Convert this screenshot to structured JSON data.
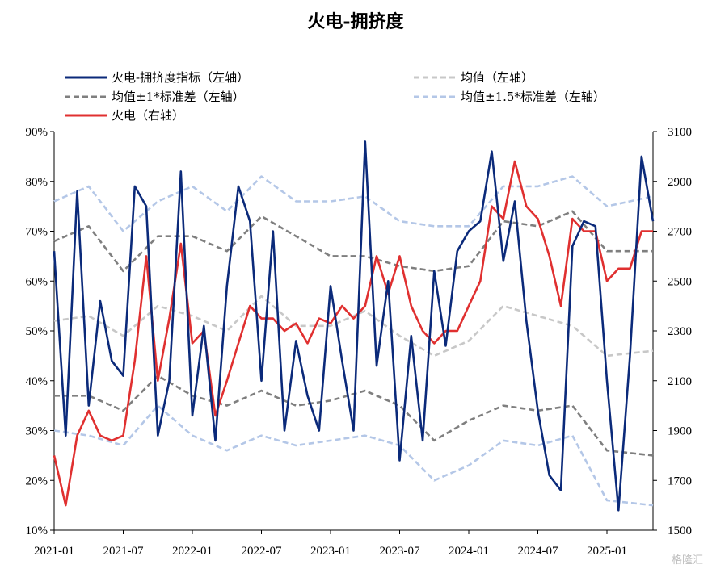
{
  "chart_data": {
    "type": "line",
    "title": "火电-拥挤度",
    "x_ticks": [
      "2021-01",
      "2021-07",
      "2022-01",
      "2022-07",
      "2023-01",
      "2023-07",
      "2024-01",
      "2024-07",
      "2025-01"
    ],
    "x_range": [
      "2021-01",
      "2025-05"
    ],
    "y_left": {
      "ticks": [
        "10%",
        "20%",
        "30%",
        "40%",
        "50%",
        "60%",
        "70%",
        "80%",
        "90%"
      ],
      "range": [
        10,
        90
      ]
    },
    "y_right": {
      "ticks": [
        "1500",
        "1700",
        "1900",
        "2100",
        "2300",
        "2500",
        "2700",
        "2900",
        "3100"
      ],
      "range": [
        1500,
        3100
      ]
    },
    "legend": [
      {
        "label": "火电-拥挤度指标（左轴）",
        "color": "#0b2a7a",
        "style": "solid"
      },
      {
        "label": "均值（左轴）",
        "color": "#c8c8c8",
        "style": "dashed"
      },
      {
        "label": "均值±1*标准差（左轴）",
        "color": "#7f7f7f",
        "style": "dashed"
      },
      {
        "label": "均值±1.5*标准差（左轴）",
        "color": "#b4c7e7",
        "style": "dashed"
      },
      {
        "label": "火电（右轴）",
        "color": "#e03030",
        "style": "solid"
      }
    ],
    "series": [
      {
        "name": "火电-拥挤度指标（左轴）",
        "axis": "left",
        "color": "#0b2a7a",
        "x": [
          "2021-01",
          "2021-02",
          "2021-03",
          "2021-04",
          "2021-05",
          "2021-06",
          "2021-07",
          "2021-08",
          "2021-09",
          "2021-10",
          "2021-11",
          "2021-12",
          "2022-01",
          "2022-02",
          "2022-03",
          "2022-04",
          "2022-05",
          "2022-06",
          "2022-07",
          "2022-08",
          "2022-09",
          "2022-10",
          "2022-11",
          "2022-12",
          "2023-01",
          "2023-02",
          "2023-03",
          "2023-04",
          "2023-05",
          "2023-06",
          "2023-07",
          "2023-08",
          "2023-09",
          "2023-10",
          "2023-11",
          "2023-12",
          "2024-01",
          "2024-02",
          "2024-03",
          "2024-04",
          "2024-05",
          "2024-06",
          "2024-07",
          "2024-08",
          "2024-09",
          "2024-10",
          "2024-11",
          "2024-12",
          "2025-01",
          "2025-02",
          "2025-03",
          "2025-04",
          "2025-05"
        ],
        "values": [
          66,
          29,
          78,
          35,
          56,
          44,
          41,
          79,
          75,
          29,
          40,
          82,
          33,
          51,
          28,
          59,
          79,
          72,
          40,
          70,
          30,
          48,
          37,
          30,
          59,
          44,
          30,
          88,
          43,
          60,
          24,
          49,
          28,
          62,
          47,
          66,
          70,
          72,
          86,
          64,
          76,
          52,
          34,
          21,
          18,
          67,
          72,
          71,
          40,
          14,
          45,
          85,
          72
        ]
      },
      {
        "name": "火电（右轴）",
        "axis": "right",
        "color": "#e03030",
        "x": [
          "2021-01",
          "2021-02",
          "2021-03",
          "2021-04",
          "2021-05",
          "2021-06",
          "2021-07",
          "2021-08",
          "2021-09",
          "2021-10",
          "2021-11",
          "2021-12",
          "2022-01",
          "2022-02",
          "2022-03",
          "2022-04",
          "2022-05",
          "2022-06",
          "2022-07",
          "2022-08",
          "2022-09",
          "2022-10",
          "2022-11",
          "2022-12",
          "2023-01",
          "2023-02",
          "2023-03",
          "2023-04",
          "2023-05",
          "2023-06",
          "2023-07",
          "2023-08",
          "2023-09",
          "2023-10",
          "2023-11",
          "2023-12",
          "2024-01",
          "2024-02",
          "2024-03",
          "2024-04",
          "2024-05",
          "2024-06",
          "2024-07",
          "2024-08",
          "2024-09",
          "2024-10",
          "2024-11",
          "2024-12",
          "2025-01",
          "2025-02",
          "2025-03",
          "2025-04",
          "2025-05"
        ],
        "values": [
          1800,
          1600,
          1880,
          1980,
          1880,
          1860,
          1880,
          2180,
          2600,
          2100,
          2350,
          2650,
          2250,
          2300,
          1960,
          2100,
          2250,
          2400,
          2350,
          2350,
          2300,
          2330,
          2250,
          2350,
          2330,
          2400,
          2350,
          2400,
          2600,
          2450,
          2600,
          2400,
          2300,
          2250,
          2300,
          2300,
          2400,
          2500,
          2800,
          2750,
          2980,
          2800,
          2750,
          2600,
          2400,
          2750,
          2700,
          2700,
          2500,
          2550,
          2550,
          2700,
          2700
        ]
      },
      {
        "name": "均值（左轴）",
        "axis": "left",
        "color": "#c8c8c8",
        "x": [
          "2021-01",
          "2021-04",
          "2021-07",
          "2021-10",
          "2022-01",
          "2022-04",
          "2022-07",
          "2022-10",
          "2023-01",
          "2023-04",
          "2023-07",
          "2023-10",
          "2024-01",
          "2024-04",
          "2024-07",
          "2024-10",
          "2025-01",
          "2025-05"
        ],
        "values": [
          52,
          53,
          49,
          55,
          53,
          50,
          57,
          51,
          51,
          54,
          49,
          45,
          48,
          55,
          53,
          51,
          45,
          46
        ]
      },
      {
        "name": "均值±1*标准差（左轴）",
        "axis": "left",
        "color": "#7f7f7f",
        "x": [
          "2021-01",
          "2021-04",
          "2021-07",
          "2021-10",
          "2022-01",
          "2022-04",
          "2022-07",
          "2022-10",
          "2023-01",
          "2023-04",
          "2023-07",
          "2023-10",
          "2024-01",
          "2024-04",
          "2024-07",
          "2024-10",
          "2025-01",
          "2025-05"
        ],
        "values": [
          68,
          71,
          62,
          69,
          69,
          66,
          73,
          69,
          65,
          65,
          63,
          62,
          63,
          72,
          71,
          74,
          66,
          66
        ]
      },
      {
        "name": "均值±1*标准差（左轴）",
        "axis": "left",
        "color": "#7f7f7f",
        "x": [
          "2021-01",
          "2021-04",
          "2021-07",
          "2021-10",
          "2022-01",
          "2022-04",
          "2022-07",
          "2022-10",
          "2023-01",
          "2023-04",
          "2023-07",
          "2023-10",
          "2024-01",
          "2024-04",
          "2024-07",
          "2024-10",
          "2025-01",
          "2025-05"
        ],
        "values": [
          37,
          37,
          34,
          41,
          37,
          35,
          38,
          35,
          36,
          38,
          35,
          28,
          32,
          35,
          34,
          35,
          26,
          25
        ]
      },
      {
        "name": "均值±1.5*标准差（左轴）",
        "axis": "left",
        "color": "#b4c7e7",
        "x": [
          "2021-01",
          "2021-04",
          "2021-07",
          "2021-10",
          "2022-01",
          "2022-04",
          "2022-07",
          "2022-10",
          "2023-01",
          "2023-04",
          "2023-07",
          "2023-10",
          "2024-01",
          "2024-04",
          "2024-07",
          "2024-10",
          "2025-01",
          "2025-05"
        ],
        "values": [
          76,
          79,
          70,
          76,
          79,
          74,
          81,
          76,
          76,
          77,
          72,
          71,
          71,
          79,
          79,
          81,
          75,
          77
        ]
      },
      {
        "name": "均值±1.5*标准差（左轴）",
        "axis": "left",
        "color": "#b4c7e7",
        "x": [
          "2021-01",
          "2021-04",
          "2021-07",
          "2021-10",
          "2022-01",
          "2022-04",
          "2022-07",
          "2022-10",
          "2023-01",
          "2023-04",
          "2023-07",
          "2023-10",
          "2024-01",
          "2024-04",
          "2024-07",
          "2024-10",
          "2025-01",
          "2025-05"
        ],
        "values": [
          30,
          29,
          27,
          35,
          29,
          26,
          29,
          27,
          28,
          29,
          27,
          20,
          23,
          28,
          27,
          29,
          16,
          15
        ]
      }
    ]
  },
  "watermark": "格隆汇"
}
